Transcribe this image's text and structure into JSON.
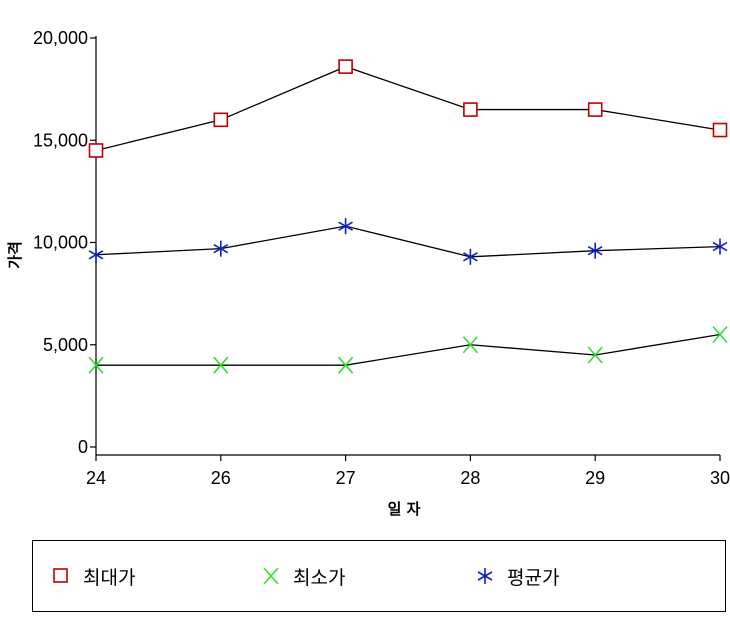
{
  "chart_data": {
    "type": "line",
    "categories": [
      "24",
      "26",
      "27",
      "28",
      "29",
      "30"
    ],
    "xlabel": "일 자",
    "ylabel": "가격",
    "ylim": [
      0,
      20000
    ],
    "yticks": [
      0,
      5000,
      10000,
      15000,
      20000
    ],
    "ytick_labels": [
      "0",
      "5,000",
      "10,000",
      "15,000",
      "20,000"
    ],
    "grid": false,
    "legend_position": "bottom",
    "series": [
      {
        "name": "최대가",
        "marker": "square",
        "color": "#c00000",
        "values": [
          14500,
          16000,
          18600,
          16500,
          16500,
          15500
        ]
      },
      {
        "name": "최소가",
        "marker": "x",
        "color": "#33dd33",
        "values": [
          4000,
          4000,
          4000,
          5000,
          4500,
          5500
        ]
      },
      {
        "name": "평균가",
        "marker": "asterisk",
        "color": "#1020c0",
        "values": [
          9400,
          9700,
          10800,
          9300,
          9600,
          9800
        ]
      }
    ],
    "line_color": "#000000"
  }
}
